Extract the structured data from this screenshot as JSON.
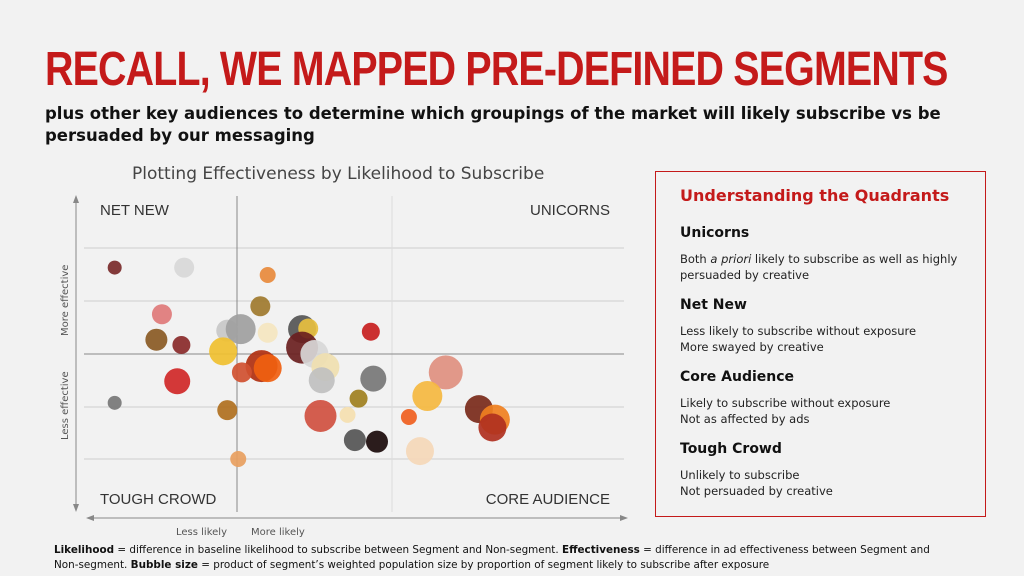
{
  "header": {
    "title": "RECALL, WE MAPPED PRE-DEFINED SEGMENTS",
    "subtitle": "plus other key audiences to determine which groupings of the market will likely subscribe vs be persuaded by our messaging"
  },
  "chart_data": {
    "type": "scatter",
    "title": "Plotting Effectiveness by Likelihood to Subscribe",
    "xlabel_negative": "Less likely",
    "xlabel_positive": "More likely",
    "ylabel_positive": "More effective",
    "ylabel_negative": "Less effective",
    "xlim": [
      -1.0,
      2.5
    ],
    "ylim": [
      -2.0,
      2.0
    ],
    "quadrant_labels": {
      "top_left": "NET NEW",
      "top_right": "UNICORNS",
      "bottom_left": "TOUGH CROWD",
      "bottom_right": "CORE AUDIENCE"
    },
    "points": [
      {
        "x": -0.88,
        "y": 1.63,
        "size": 7,
        "color": "#7a2a2a"
      },
      {
        "x": -0.38,
        "y": 1.63,
        "size": 10,
        "color": "#d8d8d8"
      },
      {
        "x": 0.25,
        "y": 1.49,
        "size": 8,
        "color": "#e88a3c"
      },
      {
        "x": 0.19,
        "y": 0.9,
        "size": 10,
        "color": "#a07a2e"
      },
      {
        "x": -0.54,
        "y": 0.75,
        "size": 10,
        "color": "#e07a7a"
      },
      {
        "x": -0.58,
        "y": 0.27,
        "size": 11,
        "color": "#8a5a24"
      },
      {
        "x": -0.4,
        "y": 0.17,
        "size": 9,
        "color": "#8a2a2a"
      },
      {
        "x": -0.07,
        "y": 0.44,
        "size": 11,
        "color": "#c8c8c8"
      },
      {
        "x": 0.03,
        "y": 0.47,
        "size": 15,
        "color": "#a0a0a0"
      },
      {
        "x": 0.25,
        "y": 0.4,
        "size": 10,
        "color": "#f5e6c0"
      },
      {
        "x": -0.1,
        "y": 0.05,
        "size": 14,
        "color": "#f0c030"
      },
      {
        "x": 0.53,
        "y": 0.47,
        "size": 14,
        "color": "#555555"
      },
      {
        "x": 0.58,
        "y": 0.48,
        "size": 10,
        "color": "#e8c040"
      },
      {
        "x": 0.53,
        "y": 0.12,
        "size": 16,
        "color": "#6a2020"
      },
      {
        "x": 0.63,
        "y": 0.0,
        "size": 14,
        "color": "#d8d8d8"
      },
      {
        "x": 0.72,
        "y": -0.25,
        "size": 14,
        "color": "#f0e0b0"
      },
      {
        "x": 0.69,
        "y": -0.5,
        "size": 13,
        "color": "#c0c0c0"
      },
      {
        "x": 1.09,
        "y": 0.42,
        "size": 9,
        "color": "#c82020"
      },
      {
        "x": 0.2,
        "y": -0.23,
        "size": 16,
        "color": "#b03010"
      },
      {
        "x": 0.25,
        "y": -0.27,
        "size": 14,
        "color": "#f06010"
      },
      {
        "x": 0.04,
        "y": -0.35,
        "size": 10,
        "color": "#d05030"
      },
      {
        "x": -0.43,
        "y": -0.52,
        "size": 13,
        "color": "#d02828"
      },
      {
        "x": 1.11,
        "y": -0.47,
        "size": 13,
        "color": "#777777"
      },
      {
        "x": 1.7,
        "y": -0.35,
        "size": 17,
        "color": "#e09080"
      },
      {
        "x": 0.99,
        "y": -0.85,
        "size": 9,
        "color": "#a08020"
      },
      {
        "x": 0.9,
        "y": -1.16,
        "size": 8,
        "color": "#f5e0b0"
      },
      {
        "x": 1.55,
        "y": -0.8,
        "size": 15,
        "color": "#f5b840"
      },
      {
        "x": 0.68,
        "y": -1.18,
        "size": 16,
        "color": "#d05040"
      },
      {
        "x": 1.4,
        "y": -1.2,
        "size": 8,
        "color": "#f06020"
      },
      {
        "x": -0.07,
        "y": -1.07,
        "size": 10,
        "color": "#b07020"
      },
      {
        "x": -0.88,
        "y": -0.93,
        "size": 7,
        "color": "#777777"
      },
      {
        "x": 1.97,
        "y": -1.05,
        "size": 14,
        "color": "#7a2a1a"
      },
      {
        "x": 2.1,
        "y": -1.25,
        "size": 15,
        "color": "#f08020"
      },
      {
        "x": 2.08,
        "y": -1.4,
        "size": 14,
        "color": "#b03020"
      },
      {
        "x": 0.96,
        "y": -1.64,
        "size": 11,
        "color": "#555555"
      },
      {
        "x": 1.14,
        "y": -1.67,
        "size": 11,
        "color": "#1a0a0a"
      },
      {
        "x": 1.49,
        "y": -1.85,
        "size": 14,
        "color": "#f5d8b8"
      },
      {
        "x": 0.01,
        "y": -2.0,
        "size": 8,
        "color": "#e8a060"
      }
    ]
  },
  "panel": {
    "title": "Understanding the Quadrants",
    "quadrants": [
      {
        "name": "Unicorns",
        "desc_pre": "Both ",
        "desc_em": "a priori",
        "desc_post": " likely to subscribe as well as highly persuaded by creative"
      },
      {
        "name": "Net New",
        "line1": "Less likely to subscribe without exposure",
        "line2": "More swayed by creative"
      },
      {
        "name": "Core Audience",
        "line1": "Likely to subscribe without exposure",
        "line2": "Not as affected by ads"
      },
      {
        "name": "Tough Crowd",
        "line1": "Unlikely to subscribe",
        "line2": "Not persuaded by creative"
      }
    ]
  },
  "footnote": {
    "t1": "Likelihood",
    "t2": " = difference in baseline likelihood to subscribe between Segment and Non-segment. ",
    "t3": "Effectiveness",
    "t4": " = difference in ad effectiveness between Segment and Non-segment. ",
    "t5": "Bubble size",
    "t6": " = product of segment’s weighted population size by proportion of segment likely to subscribe after exposure"
  },
  "colors": {
    "accent": "#c41a1a"
  }
}
